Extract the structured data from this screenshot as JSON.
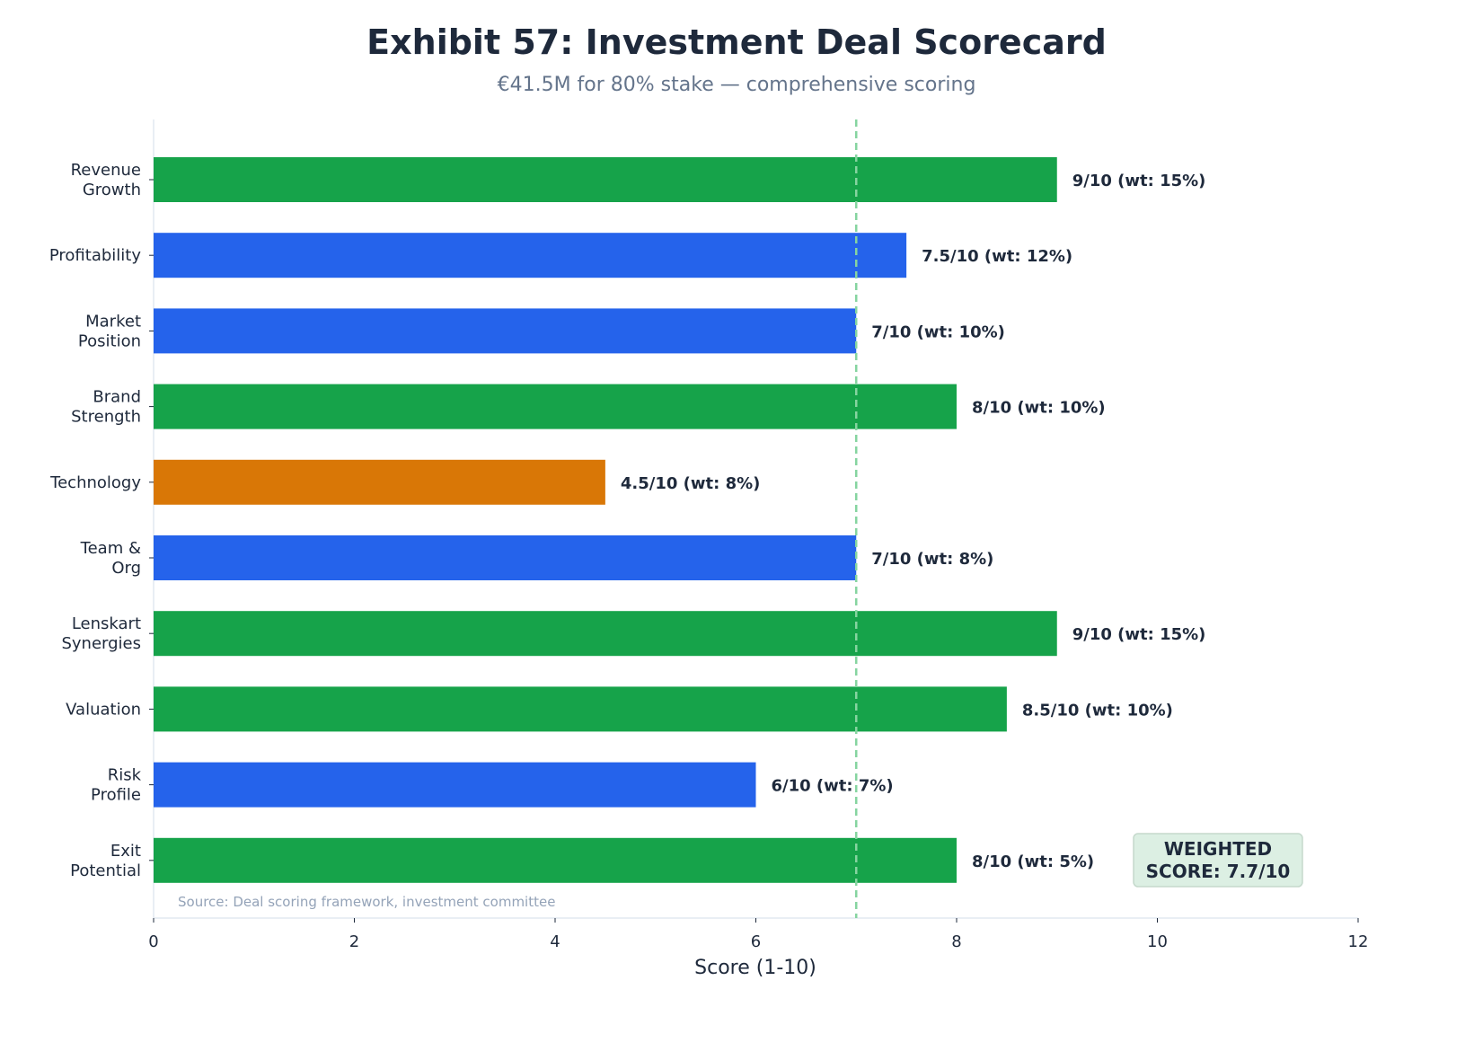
{
  "chart_data": {
    "type": "bar",
    "orientation": "horizontal",
    "title": "Exhibit 57: Investment Deal Scorecard",
    "subtitle": "€41.5M for 80% stake — comprehensive scoring",
    "xlabel": "Score (1-10)",
    "ylabel": "",
    "xlim": [
      0,
      12
    ],
    "xticks": [
      "0",
      "2",
      "4",
      "6",
      "8",
      "10",
      "12"
    ],
    "grid": false,
    "categories": [
      "Revenue\nGrowth",
      "Profitability",
      "Market\nPosition",
      "Brand\nStrength",
      "Technology",
      "Team &\nOrg",
      "Lenskart\nSynergies",
      "Valuation",
      "Risk\nProfile",
      "Exit\nPotential"
    ],
    "values": [
      9,
      7.5,
      7,
      8,
      4.5,
      7,
      9,
      8.5,
      6,
      8
    ],
    "data_labels": [
      "9/10 (wt: 15%)",
      "7.5/10 (wt: 12%)",
      "7/10 (wt: 10%)",
      "8/10 (wt: 10%)",
      "4.5/10 (wt: 8%)",
      "7/10 (wt: 8%)",
      "9/10 (wt: 15%)",
      "8.5/10 (wt: 10%)",
      "6/10 (wt: 7%)",
      "8/10 (wt: 5%)"
    ],
    "bar_colors": [
      "#16a34a",
      "#2563eb",
      "#2563eb",
      "#16a34a",
      "#d97706",
      "#2563eb",
      "#16a34a",
      "#16a34a",
      "#2563eb",
      "#16a34a"
    ],
    "reference_line": {
      "value": 7,
      "style": "dashed",
      "color": "#86d4a0"
    },
    "annotation": "WEIGHTED\nSCORE: 7.7/10",
    "source": "Source: Deal scoring framework, investment committee"
  }
}
